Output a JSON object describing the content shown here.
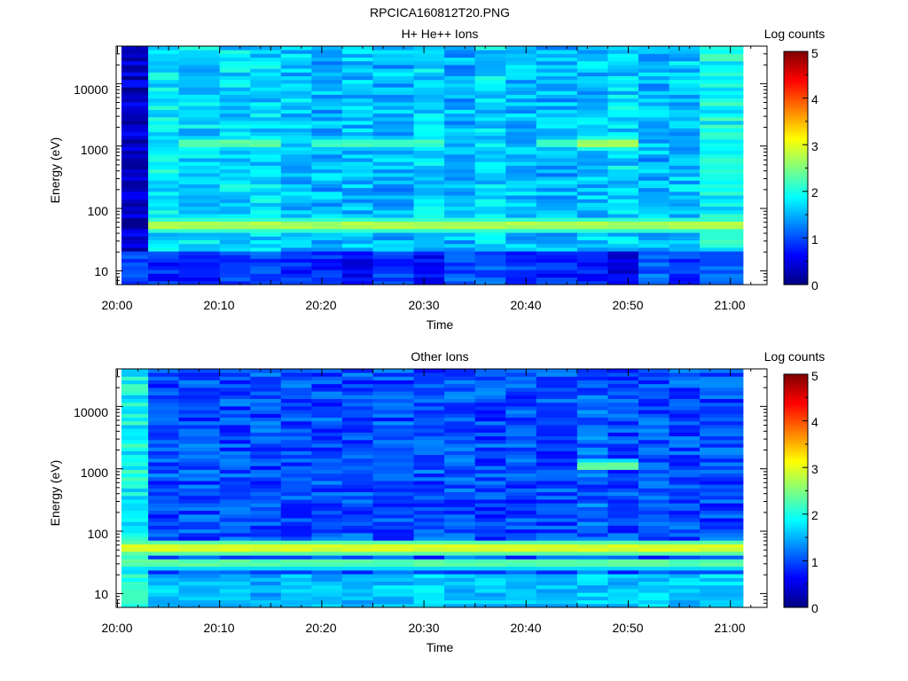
{
  "figure_title": "RPCICA160812T20.PNG",
  "chart_data": [
    {
      "type": "heatmap",
      "title": "H+ He++ Ions",
      "xlabel": "Time",
      "ylabel": "Energy (eV)",
      "x_tick_labels": [
        "20:00",
        "20:10",
        "20:20",
        "20:30",
        "20:40",
        "20:50",
        "21:00"
      ],
      "y_tick_labels": [
        "10",
        "100",
        "1000",
        "10000"
      ],
      "y_scale": "log",
      "ylim": [
        6,
        40000
      ],
      "xlim": [
        "20:00",
        "21:03"
      ],
      "colorbar": {
        "label": "Log counts",
        "ticks": [
          "0",
          "1",
          "2",
          "3",
          "4",
          "5"
        ],
        "range": [
          0,
          5
        ],
        "colormap": "jet"
      },
      "time_columns": [
        "20:00",
        "20:03",
        "20:06",
        "20:10",
        "20:13",
        "20:16",
        "20:19",
        "20:22",
        "20:25",
        "20:29",
        "20:32",
        "20:35",
        "20:38",
        "20:41",
        "20:45",
        "20:48",
        "20:51",
        "20:54",
        "20:57"
      ],
      "background_log_counts": [
        0.4,
        1.8,
        1.7,
        1.7,
        1.7,
        1.6,
        1.5,
        1.6,
        1.5,
        1.7,
        1.5,
        1.7,
        1.6,
        1.5,
        1.6,
        1.7,
        1.5,
        1.6,
        1.9
      ],
      "low_energy_log_counts": [
        0.9,
        0.8,
        0.8,
        0.9,
        1.0,
        0.8,
        0.8,
        0.6,
        0.9,
        0.6,
        1.0,
        1.1,
        0.9,
        0.8,
        0.7,
        0.5,
        1.1,
        0.9,
        1.1
      ],
      "bands": [
        {
          "energy_eV": 55,
          "log_counts": 2.7,
          "from": "20:03",
          "to": "21:03"
        },
        {
          "energy_eV": 1100,
          "log_counts": 2.6,
          "from": "20:45",
          "to": "20:51"
        },
        {
          "energy_eV": 1100,
          "log_counts": 2.3,
          "from": "20:06",
          "to": "20:16"
        },
        {
          "energy_eV": 1100,
          "log_counts": 2.2,
          "from": "20:19",
          "to": "20:32"
        },
        {
          "energy_eV": 1100,
          "log_counts": 2.1,
          "from": "20:41",
          "to": "20:45"
        }
      ]
    },
    {
      "type": "heatmap",
      "title": "Other Ions",
      "xlabel": "Time",
      "ylabel": "Energy (eV)",
      "x_tick_labels": [
        "20:00",
        "20:10",
        "20:20",
        "20:30",
        "20:40",
        "20:50",
        "21:00"
      ],
      "y_tick_labels": [
        "10",
        "100",
        "1000",
        "10000"
      ],
      "y_scale": "log",
      "ylim": [
        6,
        40000
      ],
      "xlim": [
        "20:00",
        "21:03"
      ],
      "colorbar": {
        "label": "Log counts",
        "ticks": [
          "0",
          "1",
          "2",
          "3",
          "4",
          "5"
        ],
        "range": [
          0,
          5
        ],
        "colormap": "jet"
      },
      "time_columns": [
        "20:00",
        "20:03",
        "20:06",
        "20:10",
        "20:13",
        "20:16",
        "20:19",
        "20:22",
        "20:25",
        "20:29",
        "20:32",
        "20:35",
        "20:38",
        "20:41",
        "20:45",
        "20:48",
        "20:51",
        "20:54",
        "20:57"
      ],
      "background_log_counts": [
        1.9,
        1.0,
        1.0,
        1.0,
        1.0,
        1.0,
        1.0,
        1.0,
        1.0,
        1.0,
        1.0,
        1.0,
        1.0,
        1.0,
        1.1,
        1.0,
        1.0,
        1.0,
        1.0
      ],
      "low_energy_log_counts": [
        2.0,
        1.6,
        1.5,
        1.5,
        1.5,
        1.5,
        1.5,
        1.5,
        1.6,
        1.7,
        1.6,
        1.6,
        1.6,
        1.5,
        1.6,
        1.5,
        1.6,
        1.6,
        1.7
      ],
      "bands": [
        {
          "energy_eV": 55,
          "log_counts": 2.9,
          "from": "20:00",
          "to": "21:03"
        },
        {
          "energy_eV": 30,
          "log_counts": 2.3,
          "from": "20:00",
          "to": "21:03"
        },
        {
          "energy_eV": 1150,
          "log_counts": 2.3,
          "from": "20:45",
          "to": "20:51"
        }
      ]
    }
  ]
}
